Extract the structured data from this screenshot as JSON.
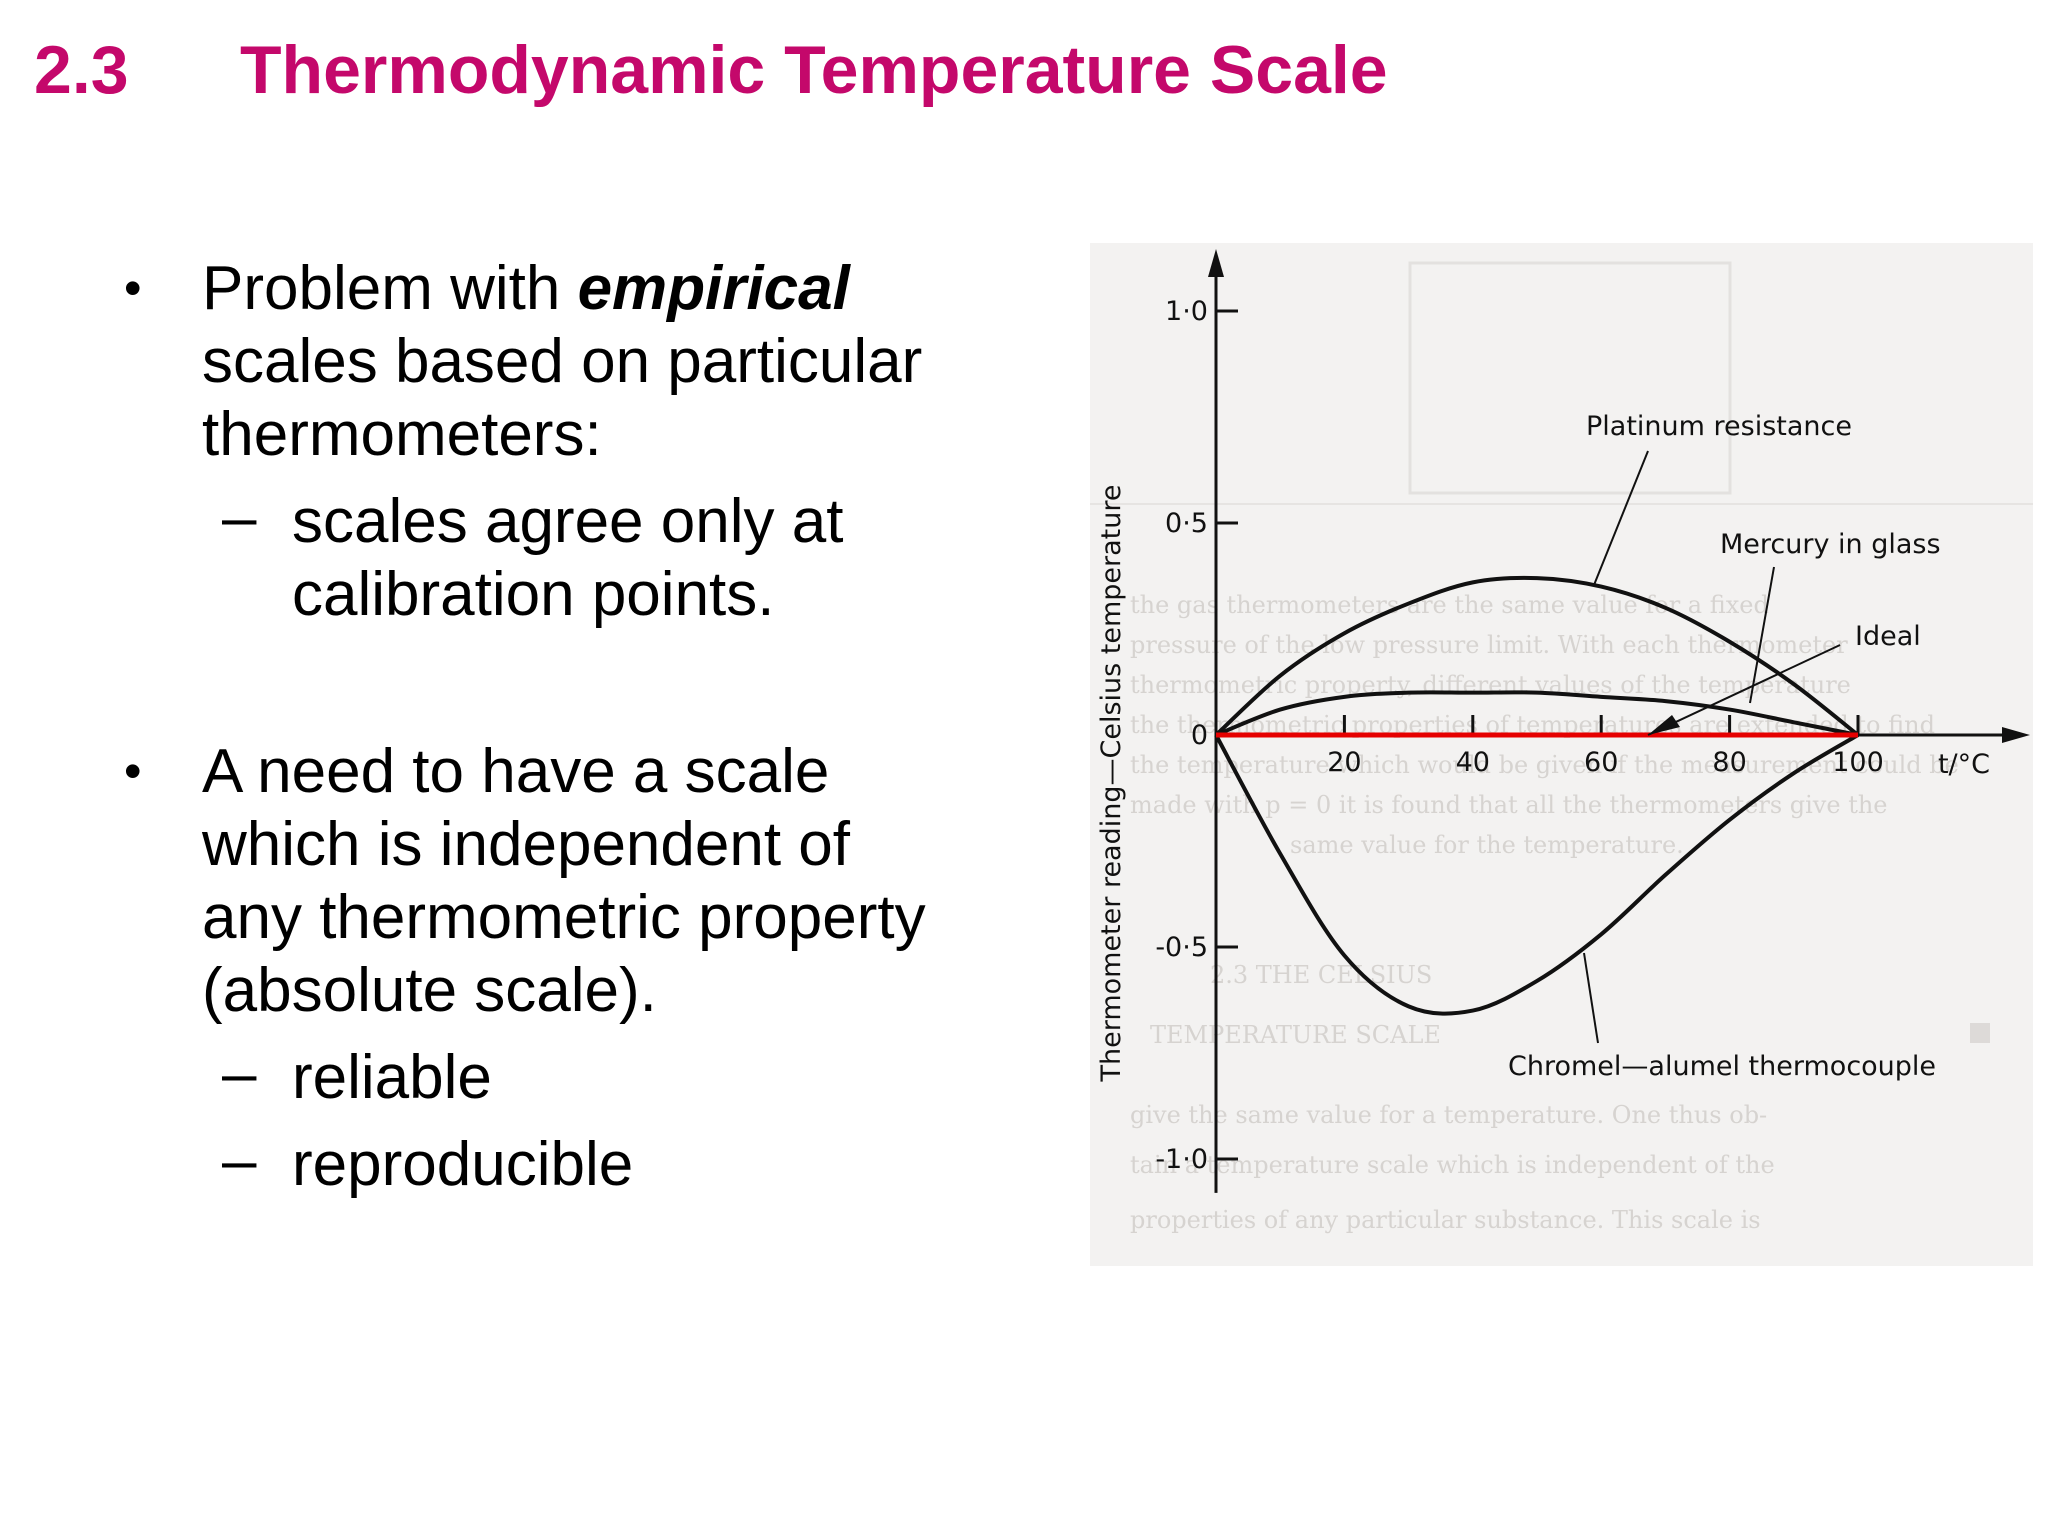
{
  "colors": {
    "title": "#c4086b",
    "ideal_line": "#e60000",
    "ink": "#111111",
    "paper": "#f3f2f1"
  },
  "title": {
    "number": "2.3",
    "text": "Thermodynamic Temperature Scale"
  },
  "bullets": [
    {
      "pre": "Problem with ",
      "emphasis": "empirical",
      "line2": "scales based on particular",
      "line3": "thermometers:",
      "sub_items": [
        {
          "line1": "scales agree only at",
          "line2": "calibration points."
        }
      ]
    },
    {
      "line1": "A need to have a scale",
      "line2": "which is independent of",
      "line3": "any thermometric property",
      "line4": "(absolute scale).",
      "sub_items": [
        {
          "text": "reliable"
        },
        {
          "text": "reproducible"
        }
      ]
    }
  ],
  "chart_data": {
    "type": "line",
    "xlabel": "t/°C",
    "ylabel": "Thermometer reading—Celsius temperature",
    "x_ticks": [
      "20",
      "40",
      "60",
      "80",
      "100"
    ],
    "y_ticks": [
      "1·0",
      "0·5",
      "0",
      "-0·5",
      "-1·0"
    ],
    "xlim": [
      0,
      100
    ],
    "ylim": [
      -1.0,
      1.0
    ],
    "series": [
      {
        "name": "Platinum resistance",
        "x": [
          0,
          10,
          20,
          30,
          40,
          50,
          60,
          70,
          80,
          90,
          100
        ],
        "y": [
          0,
          0.14,
          0.24,
          0.31,
          0.36,
          0.37,
          0.35,
          0.3,
          0.22,
          0.12,
          0
        ]
      },
      {
        "name": "Mercury in glass",
        "x": [
          0,
          10,
          20,
          30,
          40,
          50,
          60,
          70,
          80,
          90,
          100
        ],
        "y": [
          0,
          0.06,
          0.09,
          0.1,
          0.1,
          0.1,
          0.09,
          0.08,
          0.06,
          0.03,
          0
        ]
      },
      {
        "name": "Chromel—alumel thermocouple",
        "x": [
          0,
          10,
          20,
          30,
          40,
          50,
          60,
          70,
          80,
          90,
          100
        ],
        "y": [
          0,
          -0.28,
          -0.52,
          -0.64,
          -0.65,
          -0.58,
          -0.47,
          -0.33,
          -0.2,
          -0.09,
          0
        ]
      },
      {
        "name": "Ideal",
        "x": [
          0,
          100
        ],
        "y": [
          0,
          0
        ]
      }
    ]
  }
}
